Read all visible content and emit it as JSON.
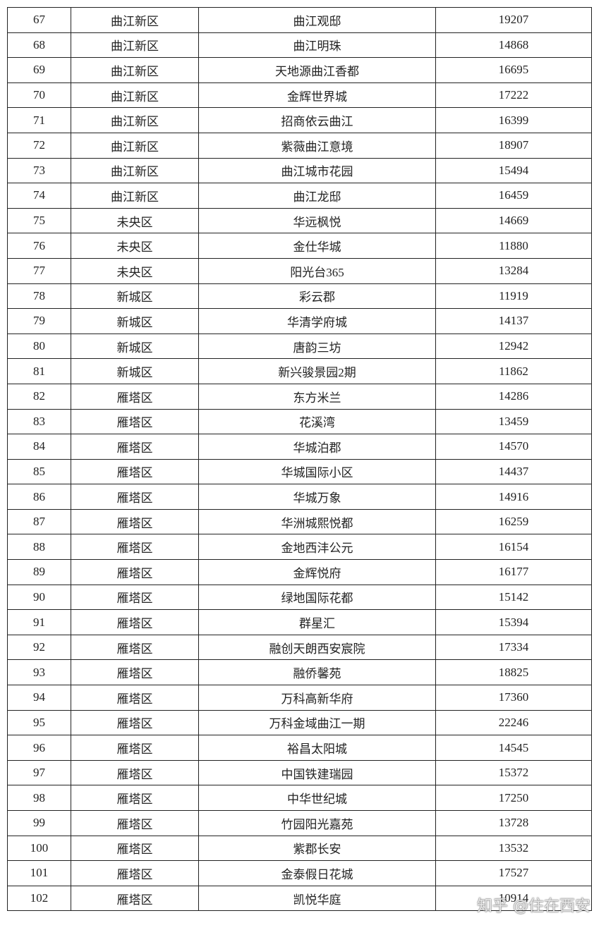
{
  "table": {
    "rows": [
      [
        67,
        "曲江新区",
        "曲江观邸",
        19207
      ],
      [
        68,
        "曲江新区",
        "曲江明珠",
        14868
      ],
      [
        69,
        "曲江新区",
        "天地源曲江香都",
        16695
      ],
      [
        70,
        "曲江新区",
        "金辉世界城",
        17222
      ],
      [
        71,
        "曲江新区",
        "招商依云曲江",
        16399
      ],
      [
        72,
        "曲江新区",
        "紫薇曲江意境",
        18907
      ],
      [
        73,
        "曲江新区",
        "曲江城市花园",
        15494
      ],
      [
        74,
        "曲江新区",
        "曲江龙邸",
        16459
      ],
      [
        75,
        "未央区",
        "华远枫悦",
        14669
      ],
      [
        76,
        "未央区",
        "金仕华城",
        11880
      ],
      [
        77,
        "未央区",
        "阳光台365",
        13284
      ],
      [
        78,
        "新城区",
        "彩云郡",
        11919
      ],
      [
        79,
        "新城区",
        "华清学府城",
        14137
      ],
      [
        80,
        "新城区",
        "唐韵三坊",
        12942
      ],
      [
        81,
        "新城区",
        "新兴骏景园2期",
        11862
      ],
      [
        82,
        "雁塔区",
        "东方米兰",
        14286
      ],
      [
        83,
        "雁塔区",
        "花溪湾",
        13459
      ],
      [
        84,
        "雁塔区",
        "华城泊郡",
        14570
      ],
      [
        85,
        "雁塔区",
        "华城国际小区",
        14437
      ],
      [
        86,
        "雁塔区",
        "华城万象",
        14916
      ],
      [
        87,
        "雁塔区",
        "华洲城熙悦都",
        16259
      ],
      [
        88,
        "雁塔区",
        "金地西沣公元",
        16154
      ],
      [
        89,
        "雁塔区",
        "金辉悦府",
        16177
      ],
      [
        90,
        "雁塔区",
        "绿地国际花都",
        15142
      ],
      [
        91,
        "雁塔区",
        "群星汇",
        15394
      ],
      [
        92,
        "雁塔区",
        "融创天朗西安宸院",
        17334
      ],
      [
        93,
        "雁塔区",
        "融侨馨苑",
        18825
      ],
      [
        94,
        "雁塔区",
        "万科高新华府",
        17360
      ],
      [
        95,
        "雁塔区",
        "万科金域曲江一期",
        22246
      ],
      [
        96,
        "雁塔区",
        "裕昌太阳城",
        14545
      ],
      [
        97,
        "雁塔区",
        "中国铁建瑞园",
        15372
      ],
      [
        98,
        "雁塔区",
        "中华世纪城",
        17250
      ],
      [
        99,
        "雁塔区",
        "竹园阳光嘉苑",
        13728
      ],
      [
        100,
        "雁塔区",
        "紫郡长安",
        13532
      ],
      [
        101,
        "雁塔区",
        "金泰假日花城",
        17527
      ],
      [
        102,
        "雁塔区",
        "凯悦华庭",
        10914
      ]
    ]
  },
  "watermark": "知乎 @住在西安"
}
